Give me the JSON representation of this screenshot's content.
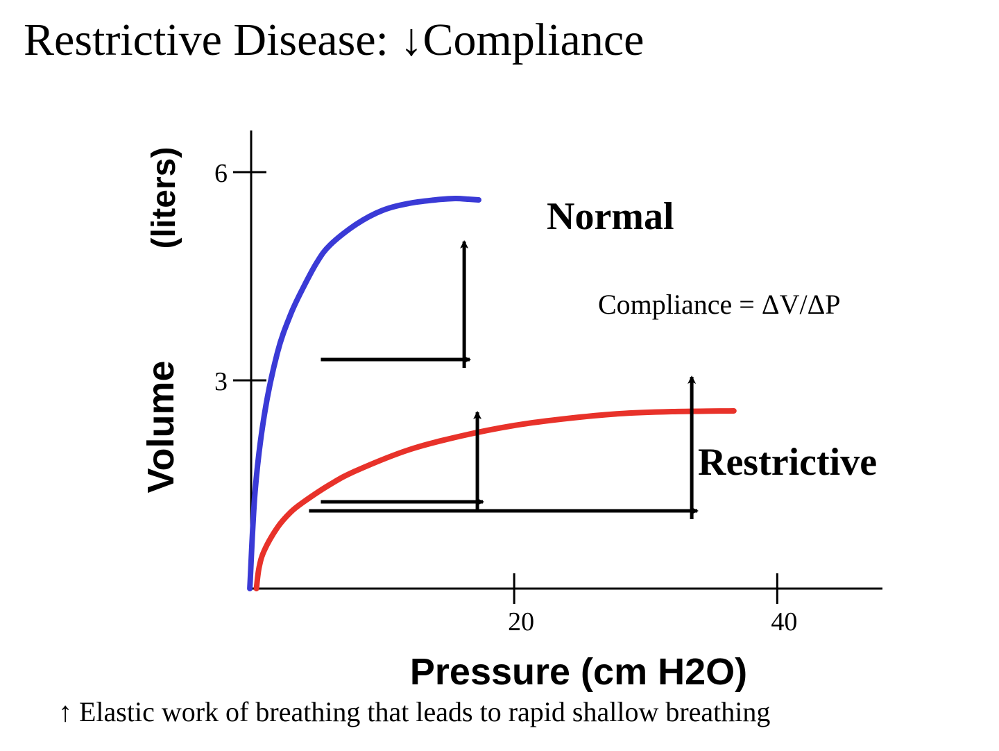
{
  "page": {
    "title": "Restrictive Disease: ↓Compliance",
    "footer": "↑ Elastic work of breathing that leads to rapid shallow breathing"
  },
  "chart_data": {
    "type": "line",
    "xlabel": "Pressure (cm H2O)",
    "ylabel_main": "Volume",
    "ylabel_unit": "(liters)",
    "xlim": [
      0,
      48
    ],
    "ylim": [
      0,
      6.6
    ],
    "x_ticks": [
      {
        "value": 20,
        "label": "20"
      },
      {
        "value": 40,
        "label": "40"
      }
    ],
    "y_ticks": [
      {
        "value": 3,
        "label": "3"
      },
      {
        "value": 6,
        "label": "6"
      }
    ],
    "series": [
      {
        "name": "Normal",
        "color": "#3a3ad6",
        "x": [
          -0.1,
          0.3,
          1,
          2,
          3,
          4,
          5,
          6,
          8,
          10,
          12,
          14,
          15.5,
          16.5,
          17.3
        ],
        "y": [
          0,
          1.4,
          2.5,
          3.4,
          3.95,
          4.35,
          4.7,
          4.95,
          5.25,
          5.45,
          5.55,
          5.6,
          5.62,
          5.61,
          5.6
        ]
      },
      {
        "name": "Restrictive",
        "color": "#e8322a",
        "x": [
          0.4,
          0.6,
          1,
          2,
          3,
          4,
          6,
          8,
          12,
          16,
          20,
          24,
          28,
          32,
          36.7
        ],
        "y": [
          0,
          0.3,
          0.55,
          0.88,
          1.1,
          1.25,
          1.5,
          1.7,
          2.0,
          2.2,
          2.35,
          2.45,
          2.52,
          2.55,
          2.56
        ]
      }
    ],
    "annotations": {
      "compliance_formula": "Compliance = ΔV/ΔP"
    },
    "step_arrows": [
      {
        "from": [
          5.3,
          3.3
        ],
        "corner": [
          16.2,
          3.3
        ],
        "to": [
          16.2,
          5.0
        ]
      },
      {
        "from": [
          5.3,
          1.25
        ],
        "corner": [
          17.2,
          1.25
        ],
        "to": [
          17.2,
          2.54
        ]
      },
      {
        "from": [
          4.4,
          1.12
        ],
        "corner": [
          33.5,
          1.12
        ],
        "to": [
          33.5,
          3.05
        ]
      }
    ]
  }
}
